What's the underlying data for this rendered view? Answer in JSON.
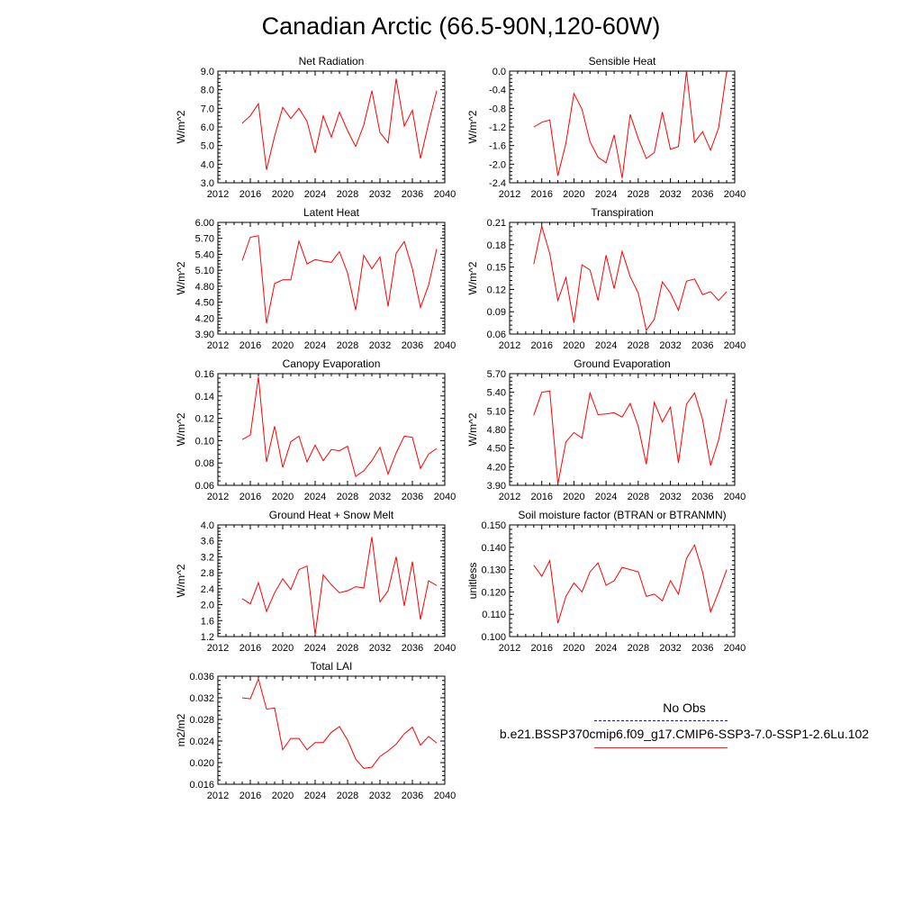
{
  "figure": {
    "title": "Canadian Arctic (66.5-90N,120-60W)",
    "line_color": "#ff0000",
    "legend": {
      "obs_label": "No Obs",
      "obs_color": "#1a1a99",
      "model_label": "b.e21.BSSP370cmip6.f09_g17.CMIP6-SSP3-7.0-SSP1-2.6Lu.102",
      "model_color": "#e83030"
    }
  },
  "chart_data": [
    {
      "type": "line",
      "title": "Net Radiation",
      "ylabel": "W/m^2",
      "xlim": [
        2012,
        2040
      ],
      "ylim": [
        3.0,
        9.0
      ],
      "xticks": [
        "2012",
        "2016",
        "2020",
        "2024",
        "2028",
        "2032",
        "2036",
        "2040"
      ],
      "yticks": [
        "3.0",
        "4.0",
        "5.0",
        "6.0",
        "7.0",
        "8.0",
        "9.0"
      ],
      "x": [
        2015,
        2016,
        2017,
        2018,
        2019,
        2020,
        2021,
        2022,
        2023,
        2024,
        2025,
        2026,
        2027,
        2028,
        2029,
        2030,
        2031,
        2032,
        2033,
        2034,
        2035,
        2036,
        2037,
        2038,
        2039
      ],
      "values": [
        6.2,
        6.6,
        7.25,
        3.7,
        5.5,
        7.05,
        6.45,
        7.0,
        6.3,
        4.6,
        6.6,
        5.45,
        6.8,
        5.8,
        4.95,
        6.1,
        7.95,
        5.7,
        5.15,
        8.6,
        6.05,
        6.9,
        4.3,
        6.2,
        7.95
      ]
    },
    {
      "type": "line",
      "title": "Sensible Heat",
      "ylabel": "W/m^2",
      "xlim": [
        2012,
        2040
      ],
      "ylim": [
        -2.4,
        0.0
      ],
      "xticks": [
        "2012",
        "2016",
        "2020",
        "2024",
        "2028",
        "2032",
        "2036",
        "2040"
      ],
      "yticks": [
        "-2.4",
        "-2.0",
        "-1.6",
        "-1.2",
        "-0.8",
        "-0.4",
        "0.0"
      ],
      "x": [
        2015,
        2016,
        2017,
        2018,
        2019,
        2020,
        2021,
        2022,
        2023,
        2024,
        2025,
        2026,
        2027,
        2028,
        2029,
        2030,
        2031,
        2032,
        2033,
        2034,
        2035,
        2036,
        2037,
        2038,
        2039
      ],
      "values": [
        -1.2,
        -1.1,
        -1.05,
        -2.25,
        -1.55,
        -0.48,
        -0.82,
        -1.52,
        -1.85,
        -1.97,
        -1.37,
        -2.3,
        -0.93,
        -1.45,
        -1.88,
        -1.75,
        -0.88,
        -1.68,
        -1.62,
        0.0,
        -1.53,
        -1.3,
        -1.7,
        -1.22,
        0.0
      ]
    },
    {
      "type": "line",
      "title": "Latent Heat",
      "ylabel": "W/m^2",
      "xlim": [
        2012,
        2040
      ],
      "ylim": [
        3.9,
        6.0
      ],
      "xticks": [
        "2012",
        "2016",
        "2020",
        "2024",
        "2028",
        "2032",
        "2036",
        "2040"
      ],
      "yticks": [
        "3.90",
        "4.20",
        "4.50",
        "4.80",
        "5.10",
        "5.40",
        "5.70",
        "6.00"
      ],
      "x": [
        2015,
        2016,
        2017,
        2018,
        2019,
        2020,
        2021,
        2022,
        2023,
        2024,
        2025,
        2026,
        2027,
        2028,
        2029,
        2030,
        2031,
        2032,
        2033,
        2034,
        2035,
        2036,
        2037,
        2038,
        2039
      ],
      "values": [
        5.28,
        5.72,
        5.75,
        4.1,
        4.85,
        4.92,
        4.92,
        5.65,
        5.22,
        5.3,
        5.27,
        5.25,
        5.45,
        5.05,
        4.35,
        5.38,
        5.13,
        5.35,
        4.42,
        5.42,
        5.64,
        5.13,
        4.4,
        4.82,
        5.5
      ]
    },
    {
      "type": "line",
      "title": "Transpiration",
      "ylabel": "W/m^2",
      "xlim": [
        2012,
        2040
      ],
      "ylim": [
        0.06,
        0.21
      ],
      "xticks": [
        "2012",
        "2016",
        "2020",
        "2024",
        "2028",
        "2032",
        "2036",
        "2040"
      ],
      "yticks": [
        "0.06",
        "0.09",
        "0.12",
        "0.15",
        "0.18",
        "0.21"
      ],
      "x": [
        2015,
        2016,
        2017,
        2018,
        2019,
        2020,
        2021,
        2022,
        2023,
        2024,
        2025,
        2026,
        2027,
        2028,
        2029,
        2030,
        2031,
        2032,
        2033,
        2034,
        2035,
        2036,
        2037,
        2038,
        2039
      ],
      "values": [
        0.154,
        0.205,
        0.168,
        0.105,
        0.136,
        0.075,
        0.153,
        0.146,
        0.105,
        0.166,
        0.121,
        0.171,
        0.137,
        0.115,
        0.065,
        0.08,
        0.13,
        0.115,
        0.092,
        0.131,
        0.134,
        0.113,
        0.117,
        0.105,
        0.117
      ]
    },
    {
      "type": "line",
      "title": "Canopy Evaporation",
      "ylabel": "W/m^2",
      "xlim": [
        2012,
        2040
      ],
      "ylim": [
        0.06,
        0.16
      ],
      "xticks": [
        "2012",
        "2016",
        "2020",
        "2024",
        "2028",
        "2032",
        "2036",
        "2040"
      ],
      "yticks": [
        "0.06",
        "0.08",
        "0.10",
        "0.12",
        "0.14",
        "0.16"
      ],
      "x": [
        2015,
        2016,
        2017,
        2018,
        2019,
        2020,
        2021,
        2022,
        2023,
        2024,
        2025,
        2026,
        2027,
        2028,
        2029,
        2030,
        2031,
        2032,
        2033,
        2034,
        2035,
        2036,
        2037,
        2038,
        2039
      ],
      "values": [
        0.101,
        0.105,
        0.157,
        0.081,
        0.113,
        0.076,
        0.099,
        0.104,
        0.081,
        0.096,
        0.082,
        0.092,
        0.091,
        0.095,
        0.068,
        0.073,
        0.082,
        0.094,
        0.07,
        0.089,
        0.104,
        0.103,
        0.075,
        0.088,
        0.093
      ]
    },
    {
      "type": "line",
      "title": "Ground Evaporation",
      "ylabel": "W/m^2",
      "xlim": [
        2012,
        2040
      ],
      "ylim": [
        3.9,
        5.7
      ],
      "xticks": [
        "2012",
        "2016",
        "2020",
        "2024",
        "2028",
        "2032",
        "2036",
        "2040"
      ],
      "yticks": [
        "3.90",
        "4.20",
        "4.50",
        "4.80",
        "5.10",
        "5.40",
        "5.70"
      ],
      "x": [
        2015,
        2016,
        2017,
        2018,
        2019,
        2020,
        2021,
        2022,
        2023,
        2024,
        2025,
        2026,
        2027,
        2028,
        2029,
        2030,
        2031,
        2032,
        2033,
        2034,
        2035,
        2036,
        2037,
        2038,
        2039
      ],
      "values": [
        5.03,
        5.4,
        5.42,
        3.92,
        4.6,
        4.75,
        4.66,
        5.39,
        5.04,
        5.05,
        5.07,
        5.0,
        5.22,
        4.85,
        4.24,
        5.24,
        4.92,
        5.16,
        4.26,
        5.21,
        5.39,
        4.96,
        4.22,
        4.63,
        5.29
      ]
    },
    {
      "type": "line",
      "title": "Ground Heat + Snow Melt",
      "ylabel": "W/m^2",
      "xlim": [
        2012,
        2040
      ],
      "ylim": [
        1.2,
        4.0
      ],
      "xticks": [
        "2012",
        "2016",
        "2020",
        "2024",
        "2028",
        "2032",
        "2036",
        "2040"
      ],
      "yticks": [
        "1.2",
        "1.6",
        "2.0",
        "2.4",
        "2.8",
        "3.2",
        "3.6",
        "4.0"
      ],
      "x": [
        2015,
        2016,
        2017,
        2018,
        2019,
        2020,
        2021,
        2022,
        2023,
        2024,
        2025,
        2026,
        2027,
        2028,
        2029,
        2030,
        2031,
        2032,
        2033,
        2034,
        2035,
        2036,
        2037,
        2038,
        2039
      ],
      "values": [
        2.15,
        2.02,
        2.55,
        1.83,
        2.3,
        2.65,
        2.38,
        2.88,
        2.97,
        1.25,
        2.75,
        2.5,
        2.3,
        2.35,
        2.45,
        2.42,
        3.7,
        2.07,
        2.35,
        3.2,
        1.97,
        3.08,
        1.63,
        2.6,
        2.48
      ]
    },
    {
      "type": "line",
      "title": "Soil moisture factor (BTRAN or BTRANMN)",
      "ylabel": "unitless",
      "xlim": [
        2012,
        2040
      ],
      "ylim": [
        0.1,
        0.15
      ],
      "xticks": [
        "2012",
        "2016",
        "2020",
        "2024",
        "2028",
        "2032",
        "2036",
        "2040"
      ],
      "yticks": [
        "0.100",
        "0.110",
        "0.120",
        "0.130",
        "0.140",
        "0.150"
      ],
      "x": [
        2015,
        2016,
        2017,
        2018,
        2019,
        2020,
        2021,
        2022,
        2023,
        2024,
        2025,
        2026,
        2027,
        2028,
        2029,
        2030,
        2031,
        2032,
        2033,
        2034,
        2035,
        2036,
        2037,
        2038,
        2039
      ],
      "values": [
        0.132,
        0.127,
        0.134,
        0.106,
        0.118,
        0.124,
        0.12,
        0.129,
        0.133,
        0.123,
        0.125,
        0.131,
        0.13,
        0.129,
        0.118,
        0.119,
        0.116,
        0.125,
        0.119,
        0.135,
        0.141,
        0.129,
        0.111,
        0.12,
        0.13
      ]
    },
    {
      "type": "line",
      "title": "Total LAI",
      "ylabel": "m2/m2",
      "xlim": [
        2012,
        2040
      ],
      "ylim": [
        0.015,
        0.036
      ],
      "xticks": [
        "2012",
        "2016",
        "2020",
        "2024",
        "2028",
        "2032",
        "2036",
        "2040"
      ],
      "yticks": [
        "0.016",
        "0.020",
        "0.024",
        "0.028",
        "0.032",
        "0.036"
      ],
      "x": [
        2015,
        2016,
        2017,
        2018,
        2019,
        2020,
        2021,
        2022,
        2023,
        2024,
        2025,
        2026,
        2027,
        2028,
        2029,
        2030,
        2031,
        2032,
        2033,
        2034,
        2035,
        2036,
        2037,
        2038,
        2039
      ],
      "values": [
        0.0318,
        0.0316,
        0.0355,
        0.0296,
        0.0298,
        0.0217,
        0.0239,
        0.0239,
        0.0217,
        0.0231,
        0.0231,
        0.0251,
        0.0262,
        0.0236,
        0.0199,
        0.0181,
        0.0183,
        0.0204,
        0.0215,
        0.0228,
        0.0248,
        0.0261,
        0.0226,
        0.0243,
        0.023
      ]
    }
  ]
}
